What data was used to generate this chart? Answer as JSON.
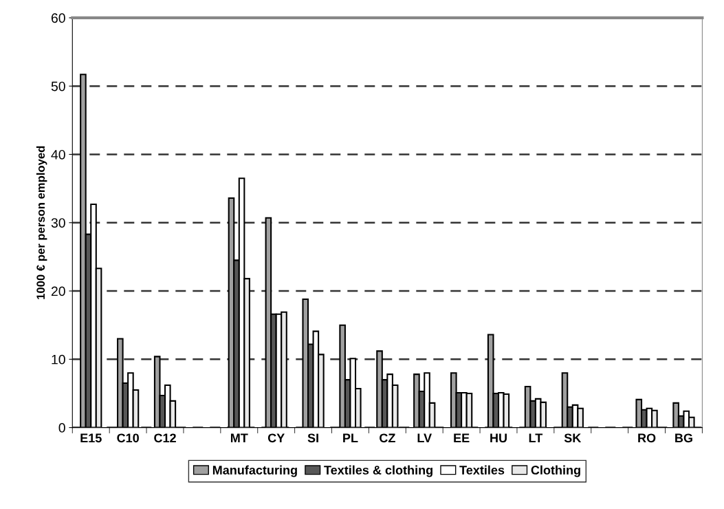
{
  "chart_data": {
    "type": "bar",
    "ylabel": "1000 € per person employed",
    "categories": [
      "E15",
      "C10",
      "C12",
      null,
      "MT",
      "CY",
      "SI",
      "PL",
      "CZ",
      "LV",
      "EE",
      "HU",
      "LT",
      "SK",
      null,
      "RO",
      "BG"
    ],
    "series": [
      {
        "name": "Manufacturing",
        "color": "#a0a0a0",
        "values": [
          51.7,
          13.0,
          10.4,
          null,
          33.6,
          30.7,
          18.8,
          15.0,
          11.2,
          7.8,
          8.0,
          13.6,
          6.0,
          8.0,
          null,
          4.1,
          3.6
        ]
      },
      {
        "name": "Textiles & clothing",
        "color": "#585858",
        "values": [
          28.3,
          6.5,
          4.7,
          null,
          24.5,
          16.6,
          12.2,
          7.0,
          7.0,
          5.3,
          5.1,
          5.0,
          3.9,
          3.0,
          null,
          2.6,
          1.7
        ]
      },
      {
        "name": "Textiles",
        "color": "#ffffff",
        "values": [
          32.7,
          8.0,
          6.2,
          null,
          36.5,
          16.6,
          14.1,
          10.1,
          7.8,
          8.0,
          5.1,
          5.1,
          4.2,
          3.3,
          null,
          2.8,
          2.4
        ]
      },
      {
        "name": "Clothing",
        "color": "#e8e8e8",
        "values": [
          23.3,
          5.5,
          3.9,
          null,
          21.8,
          16.9,
          10.7,
          5.7,
          6.2,
          3.6,
          5.0,
          4.9,
          3.7,
          2.8,
          null,
          2.5,
          1.5
        ]
      }
    ],
    "ylim": [
      0,
      60
    ],
    "yticks": [
      0,
      10,
      20,
      30,
      40,
      50,
      60
    ],
    "grid": "y",
    "line_style": "dashed",
    "legend": "bottom"
  }
}
